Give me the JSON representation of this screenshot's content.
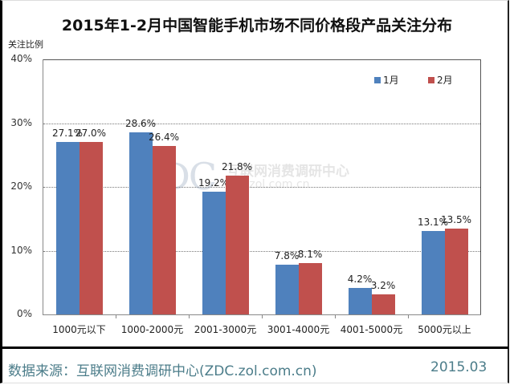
{
  "title": "2015年1-2月中国智能手机市场不同价格段产品关注分布",
  "y_axis_label": "关注比例",
  "legend": [
    {
      "label": "1月",
      "color": "#4f81bd"
    },
    {
      "label": "2月",
      "color": "#c0504d"
    }
  ],
  "watermark": {
    "logo": "ZDC",
    "name": "互联网消费调研中心",
    "url": "zdc.zol.com.cn"
  },
  "footer": {
    "source": "数据来源：互联网消费调研中心(ZDC.zol.com.cn)",
    "date": "2015.03"
  },
  "chart_data": {
    "type": "bar",
    "title": "2015年1-2月中国智能手机市场不同价格段产品关注分布",
    "xlabel": "",
    "ylabel": "关注比例",
    "ylim": [
      0,
      40
    ],
    "yticks": [
      "0%",
      "10%",
      "20%",
      "30%",
      "40%"
    ],
    "grid": true,
    "legend_position": "top-right",
    "categories": [
      "1000元以下",
      "1000-2000元",
      "2001-3000元",
      "3001-4000元",
      "4001-5000元",
      "5000元以上"
    ],
    "series": [
      {
        "name": "1月",
        "color": "#4f81bd",
        "values": [
          27.1,
          28.6,
          19.2,
          7.8,
          4.2,
          13.1
        ],
        "labels": [
          "27.1%",
          "28.6%",
          "19.2%",
          "7.8%",
          "4.2%",
          "13.1%"
        ]
      },
      {
        "name": "2月",
        "color": "#c0504d",
        "values": [
          27.0,
          26.4,
          21.8,
          8.1,
          3.2,
          13.5
        ],
        "labels": [
          "27.0%",
          "26.4%",
          "21.8%",
          "8.1%",
          "3.2%",
          "13.5%"
        ]
      }
    ]
  }
}
